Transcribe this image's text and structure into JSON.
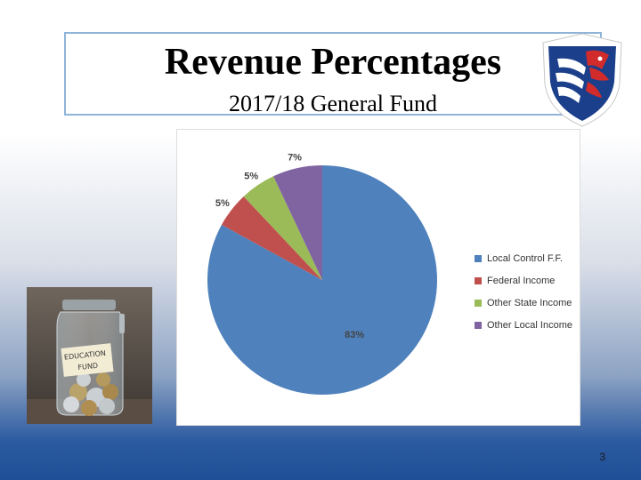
{
  "slide": {
    "title": "Revenue Percentages",
    "subtitle": "2017/18 General Fund",
    "page_number": "3"
  },
  "photo": {
    "jar_label_line1": "EDUCATION",
    "jar_label_line2": "FUND"
  },
  "chart_data": {
    "type": "pie",
    "title": "",
    "categories": [
      "Local Control F.F.",
      "Federal Income",
      "Other State Income",
      "Other Local Income"
    ],
    "values": [
      83,
      5,
      5,
      7
    ],
    "labels": [
      "83%",
      "5%",
      "5%",
      "7%"
    ],
    "colors": [
      "#4f81bd",
      "#c0504d",
      "#9bbb59",
      "#8064a2"
    ],
    "legend_position": "right"
  }
}
